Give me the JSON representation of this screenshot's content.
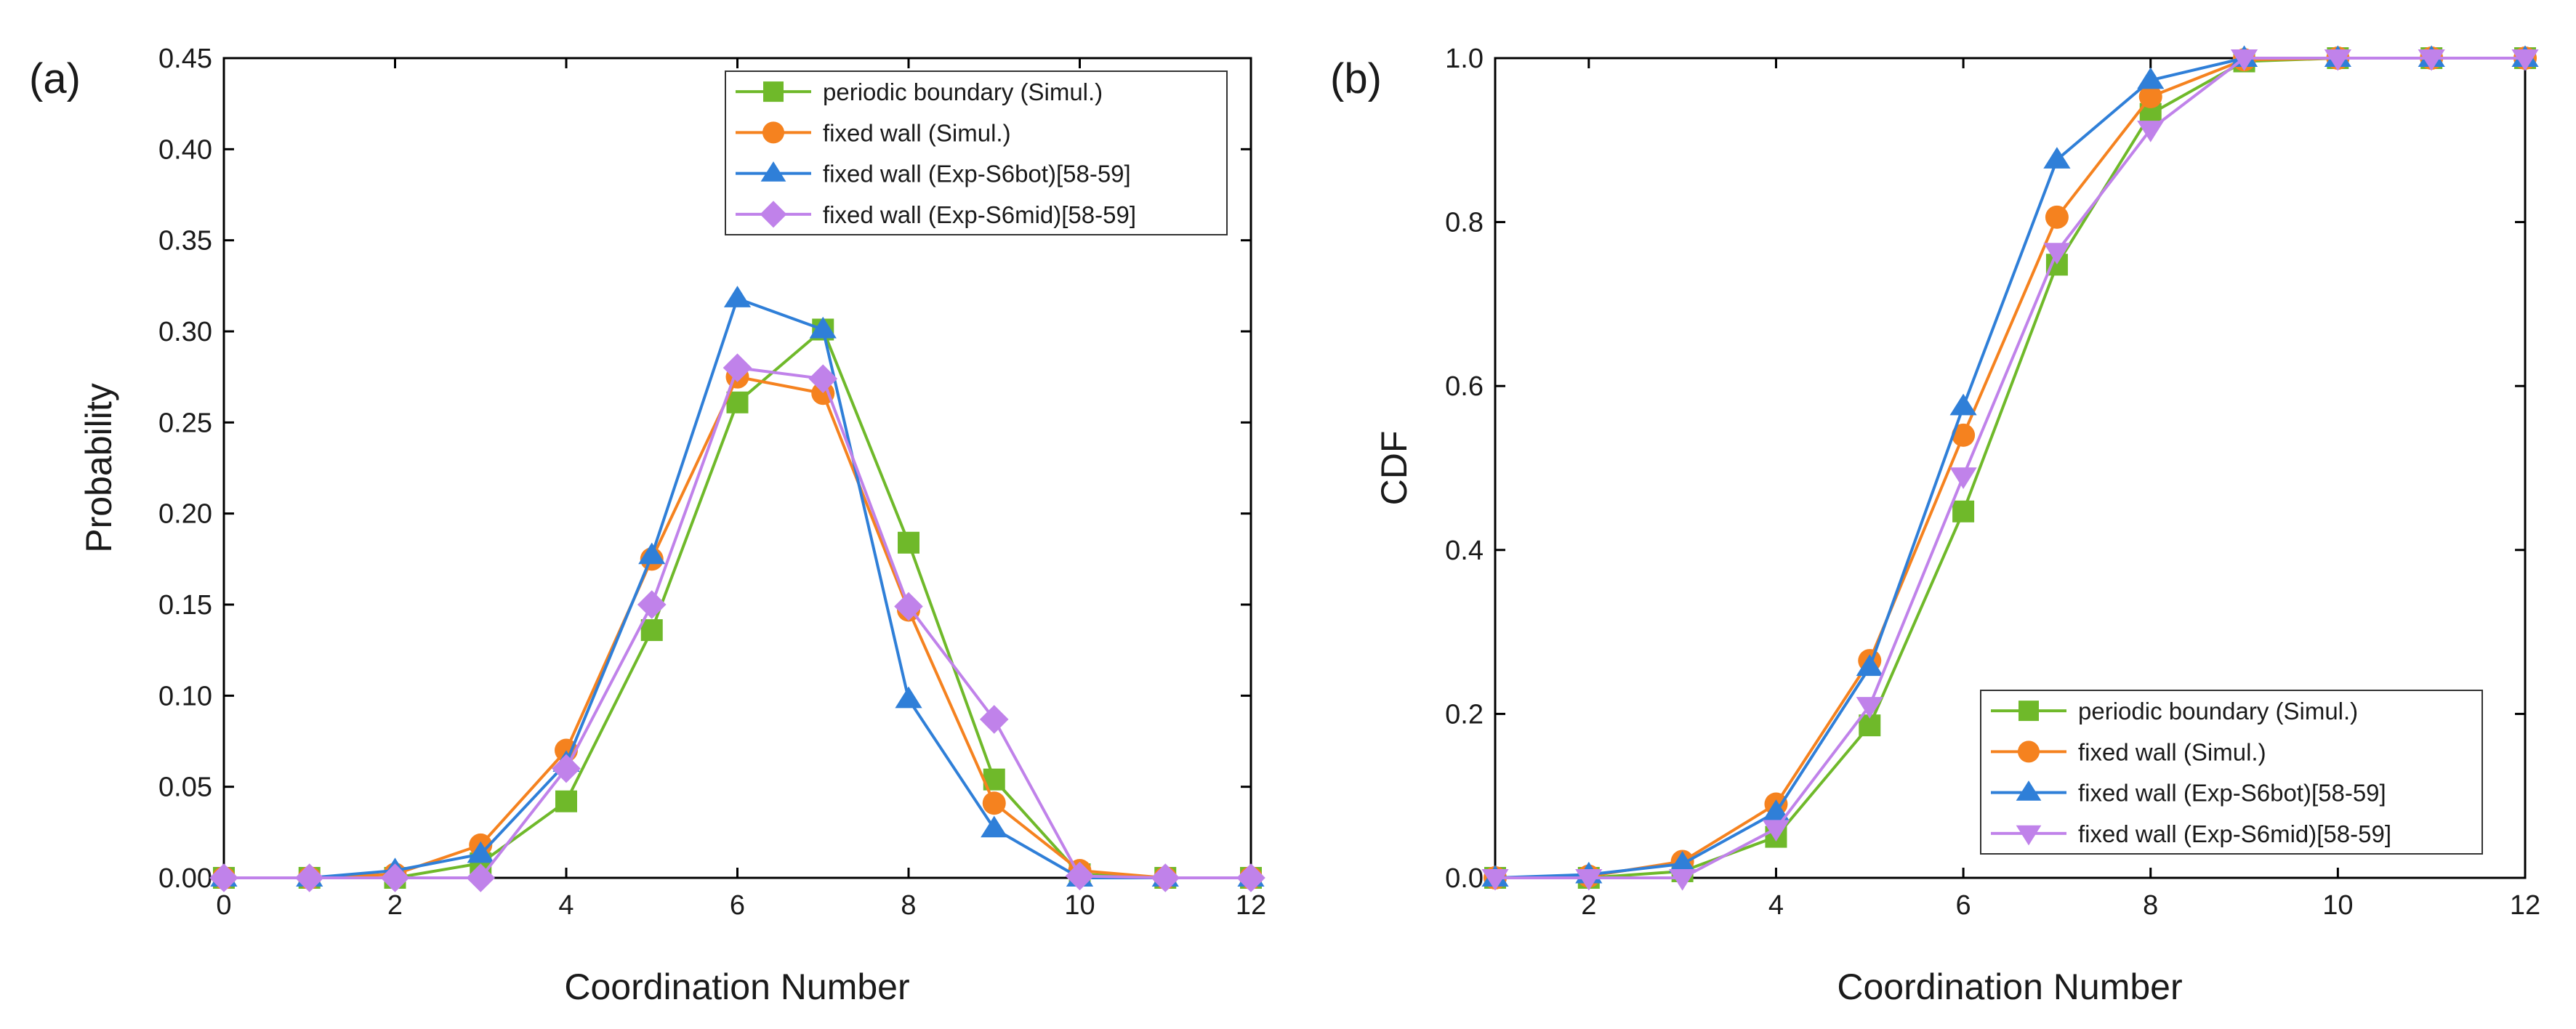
{
  "figure": {
    "panel_labels": [
      "(a)",
      "(b)"
    ]
  },
  "colors": {
    "periodic": "#6fb92a",
    "fixed_simul": "#f5821f",
    "exp_bot": "#2f7fd8",
    "exp_mid": "#c082ea"
  },
  "chart_data": [
    {
      "type": "line",
      "panel": "(a)",
      "xlabel": "Coordination Number",
      "ylabel": "Probability",
      "xlim": [
        0,
        12
      ],
      "ylim": [
        0,
        0.45
      ],
      "xticks": [
        0,
        2,
        4,
        6,
        8,
        10,
        12
      ],
      "xtick_labels": [
        "0",
        "2",
        "4",
        "6",
        "8",
        "10",
        "12"
      ],
      "yticks": [
        0,
        0.05,
        0.1,
        0.15,
        0.2,
        0.25,
        0.3,
        0.35,
        0.4,
        0.45
      ],
      "ytick_labels": [
        "0.00",
        "0.05",
        "0.10",
        "0.15",
        "0.20",
        "0.25",
        "0.30",
        "0.35",
        "0.40",
        "0.45"
      ],
      "grid": false,
      "legend_position": "top-right",
      "x": [
        0,
        1,
        2,
        3,
        4,
        5,
        6,
        7,
        8,
        9,
        10,
        11,
        12
      ],
      "series": [
        {
          "name": "periodic boundary (Simul.)",
          "marker": "square",
          "color": "#6fb92a",
          "values": [
            0,
            0,
            0,
            0.008,
            0.042,
            0.136,
            0.261,
            0.301,
            0.184,
            0.054,
            0.002,
            0,
            0
          ]
        },
        {
          "name": "fixed wall (Simul.)",
          "marker": "circle",
          "color": "#f5821f",
          "values": [
            0,
            0,
            0.002,
            0.018,
            0.07,
            0.175,
            0.275,
            0.266,
            0.147,
            0.041,
            0.004,
            0,
            0
          ]
        },
        {
          "name": "fixed wall (Exp-S6bot)[58-59]",
          "marker": "triangle-up",
          "color": "#2f7fd8",
          "values": [
            0,
            0,
            0.004,
            0.013,
            0.063,
            0.177,
            0.318,
            0.301,
            0.098,
            0.027,
            0,
            0,
            0
          ]
        },
        {
          "name": "fixed wall (Exp-S6mid)[58-59]",
          "marker": "diamond",
          "color": "#c082ea",
          "values": [
            0,
            0,
            0,
            0,
            0.06,
            0.15,
            0.28,
            0.274,
            0.149,
            0.087,
            0.001,
            0,
            0
          ]
        }
      ]
    },
    {
      "type": "line",
      "panel": "(b)",
      "xlabel": "Coordination Number",
      "ylabel": "CDF",
      "xlim": [
        1,
        12
      ],
      "ylim": [
        0,
        1.0
      ],
      "xticks": [
        2,
        4,
        6,
        8,
        10,
        12
      ],
      "xtick_labels": [
        "2",
        "4",
        "6",
        "8",
        "10",
        "12"
      ],
      "yticks": [
        0,
        0.2,
        0.4,
        0.6,
        0.8,
        1.0
      ],
      "ytick_labels": [
        "0.0",
        "0.2",
        "0.4",
        "0.6",
        "0.8",
        "1.0"
      ],
      "grid": false,
      "legend_position": "bottom-right",
      "x": [
        1,
        2,
        3,
        4,
        5,
        6,
        7,
        8,
        9,
        10,
        11,
        12
      ],
      "series": [
        {
          "name": "periodic boundary (Simul.)",
          "marker": "square",
          "color": "#6fb92a",
          "values": [
            0,
            0,
            0.008,
            0.05,
            0.186,
            0.447,
            0.748,
            0.932,
            0.996,
            1.0,
            1.0,
            1.0
          ]
        },
        {
          "name": "fixed wall (Simul.)",
          "marker": "circle",
          "color": "#f5821f",
          "values": [
            0,
            0.002,
            0.02,
            0.09,
            0.265,
            0.54,
            0.806,
            0.953,
            0.998,
            1.0,
            1.0,
            1.0
          ]
        },
        {
          "name": "fixed wall (Exp-S6bot)[58-59]",
          "marker": "triangle-up",
          "color": "#2f7fd8",
          "values": [
            0,
            0.004,
            0.017,
            0.08,
            0.257,
            0.575,
            0.876,
            0.973,
            1.0,
            1.0,
            1.0,
            1.0
          ]
        },
        {
          "name": "fixed wall (Exp-S6mid)[58-59]",
          "marker": "triangle-down",
          "color": "#c082ea",
          "values": [
            0,
            0,
            0,
            0.06,
            0.21,
            0.49,
            0.764,
            0.913,
            1.0,
            1.0,
            1.0,
            1.0
          ]
        }
      ]
    }
  ]
}
